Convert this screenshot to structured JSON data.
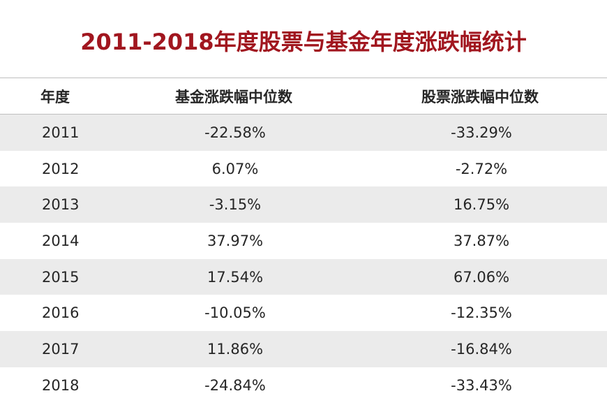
{
  "title": "2011-2018年度股票与基金年度涨跌幅统计",
  "table": {
    "headers": [
      "年度",
      "基金涨跌幅中位数",
      "股票涨跌幅中位数"
    ],
    "rows": [
      {
        "year": "2011",
        "fund": "-22.58%",
        "stock": "-33.29%"
      },
      {
        "year": "2012",
        "fund": "6.07%",
        "stock": "-2.72%"
      },
      {
        "year": "2013",
        "fund": "-3.15%",
        "stock": "16.75%"
      },
      {
        "year": "2014",
        "fund": "37.97%",
        "stock": "37.87%"
      },
      {
        "year": "2015",
        "fund": "17.54%",
        "stock": "67.06%"
      },
      {
        "year": "2016",
        "fund": "-10.05%",
        "stock": "-12.35%"
      },
      {
        "year": "2017",
        "fund": "11.86%",
        "stock": "-16.84%"
      },
      {
        "year": "2018",
        "fund": "-24.84%",
        "stock": "-33.43%"
      }
    ]
  },
  "colors": {
    "title": "#a1161f",
    "row_shade": "#ebebeb",
    "text": "#262626"
  }
}
